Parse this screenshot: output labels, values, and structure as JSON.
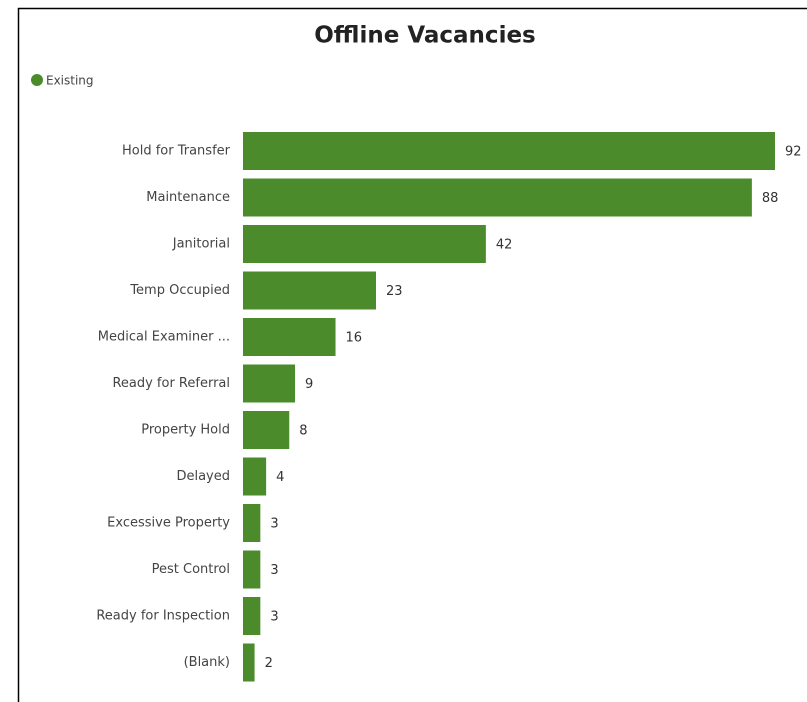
{
  "chart_data": {
    "type": "bar",
    "orientation": "horizontal",
    "title": "Offline Vacancies",
    "legend": "top-left",
    "series": [
      {
        "name": "Existing",
        "color": "#4b8b2b",
        "values": [
          92,
          88,
          42,
          23,
          16,
          9,
          8,
          4,
          3,
          3,
          3,
          2
        ]
      }
    ],
    "categories": [
      "Hold for Transfer",
      "Maintenance",
      "Janitorial",
      "Temp Occupied",
      "Medical Examiner ...",
      "Ready for Referral",
      "Property Hold",
      "Delayed",
      "Excessive Property",
      "Pest Control",
      "Ready for Inspection",
      "(Blank)"
    ]
  }
}
